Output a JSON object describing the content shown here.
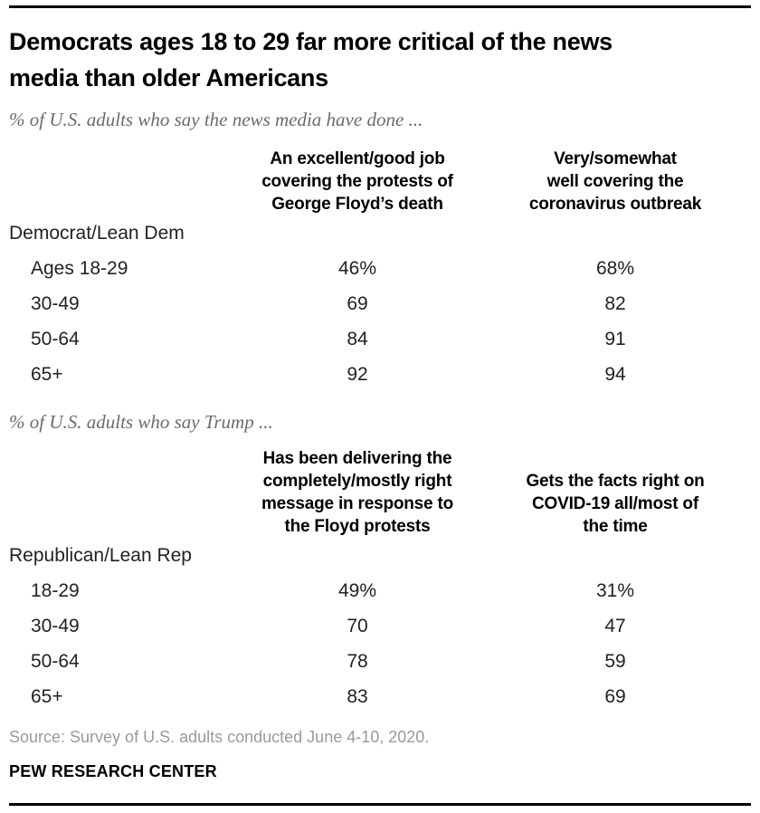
{
  "header": {
    "title": "Democrats ages 18 to 29 far more critical of the news\nmedia than older Americans"
  },
  "sections": [
    {
      "subtitle": "% of U.S. adults who say the news media have done ...",
      "col1_header": "An excellent/good job\ncovering the protests of\nGeorge Floyd’s death",
      "col2_header": "Very/somewhat\nwell covering the\ncoronavirus outbreak",
      "group_label": "Democrat/Lean Dem",
      "rows": [
        {
          "label": "Ages 18-29",
          "col1": "46%",
          "col2": "68%"
        },
        {
          "label": "30-49",
          "col1": "69",
          "col2": "82"
        },
        {
          "label": "50-64",
          "col1": "84",
          "col2": "91"
        },
        {
          "label": "65+",
          "col1": "92",
          "col2": "94"
        }
      ]
    },
    {
      "subtitle": "% of U.S. adults who say Trump ...",
      "col1_header": "Has been delivering the\ncompletely/mostly right\nmessage in response to\nthe Floyd protests",
      "col2_header": "Gets the facts right on\nCOVID-19 all/most of\nthe time",
      "group_label": "Republican/Lean Rep",
      "rows": [
        {
          "label": "18-29",
          "col1": "49%",
          "col2": "31%"
        },
        {
          "label": "30-49",
          "col1": "70",
          "col2": "47"
        },
        {
          "label": "50-64",
          "col1": "78",
          "col2": "59"
        },
        {
          "label": "65+",
          "col1": "83",
          "col2": "69"
        }
      ]
    }
  ],
  "footer": {
    "source": "Source: Survey of U.S. adults conducted June 4-10, 2020.",
    "brand": "PEW RESEARCH CENTER"
  },
  "colors": {
    "rule": "#000000",
    "title_text": "#000000",
    "subtitle_text": "#6b6b6b",
    "body_text": "#222222",
    "source_text": "#9a9a9a"
  },
  "chart_data": [
    {
      "type": "table",
      "title": "Democrats ages 18 to 29 far more critical of the news media than older Americans",
      "subtitle": "% of U.S. adults who say the news media have done ...",
      "group": "Democrat/Lean Dem",
      "categories": [
        "Ages 18-29",
        "30-49",
        "50-64",
        "65+"
      ],
      "series": [
        {
          "name": "An excellent/good job covering the protests of George Floyd’s death",
          "values": [
            46,
            69,
            84,
            92
          ]
        },
        {
          "name": "Very/somewhat well covering the coronavirus outbreak",
          "values": [
            68,
            82,
            91,
            94
          ]
        }
      ],
      "value_unit": "%"
    },
    {
      "type": "table",
      "subtitle": "% of U.S. adults who say Trump ...",
      "group": "Republican/Lean Rep",
      "categories": [
        "18-29",
        "30-49",
        "50-64",
        "65+"
      ],
      "series": [
        {
          "name": "Has been delivering the completely/mostly right message in response to the Floyd protests",
          "values": [
            49,
            70,
            78,
            83
          ]
        },
        {
          "name": "Gets the facts right on COVID-19 all/most of the time",
          "values": [
            31,
            47,
            59,
            69
          ]
        }
      ],
      "value_unit": "%"
    }
  ]
}
